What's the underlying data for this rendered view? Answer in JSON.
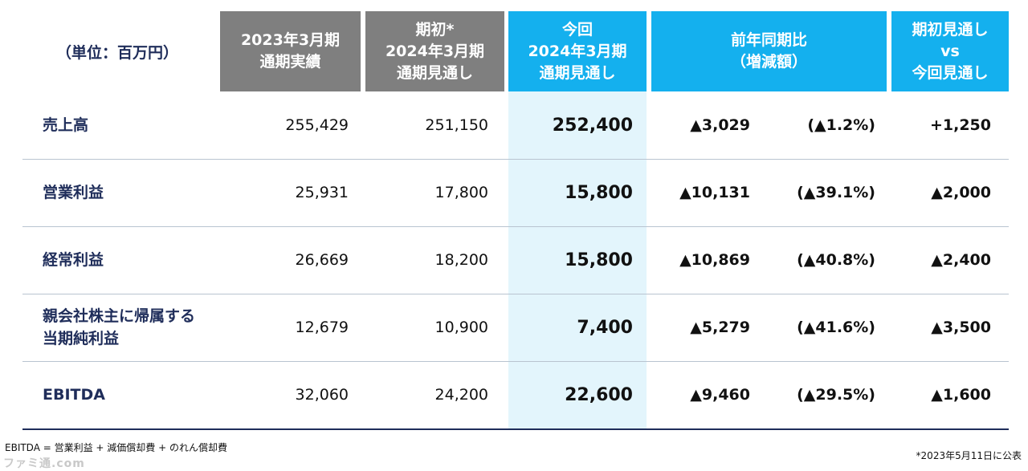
{
  "header": {
    "unit": "（単位：百万円）",
    "columns": [
      {
        "lines": [
          "2023年3月期",
          "通期実績"
        ]
      },
      {
        "lines": [
          "期初*",
          "2024年3月期",
          "通期見通し"
        ]
      },
      {
        "lines": [
          "今回",
          "2024年3月期",
          "通期見通し"
        ]
      },
      {
        "lines": [
          "前年同期比",
          "（増減額）"
        ]
      },
      {
        "lines": [
          "期初見通し",
          "vs",
          "今回見通し"
        ]
      }
    ]
  },
  "rows": [
    {
      "label": [
        "売上高"
      ],
      "actual": "255,429",
      "initial": "251,150",
      "current": "252,400",
      "yoy": "▲3,029",
      "yoy_pct": "(▲1.2%)",
      "diff": "+1,250"
    },
    {
      "label": [
        "営業利益"
      ],
      "actual": "25,931",
      "initial": "17,800",
      "current": "15,800",
      "yoy": "▲10,131",
      "yoy_pct": "(▲39.1%)",
      "diff": "▲2,000"
    },
    {
      "label": [
        "経常利益"
      ],
      "actual": "26,669",
      "initial": "18,200",
      "current": "15,800",
      "yoy": "▲10,869",
      "yoy_pct": "(▲40.8%)",
      "diff": "▲2,400"
    },
    {
      "label": [
        "親会社株主に帰属する",
        "当期純利益"
      ],
      "actual": "12,679",
      "initial": "10,900",
      "current": "7,400",
      "yoy": "▲5,279",
      "yoy_pct": "(▲41.6%)",
      "diff": "▲3,500"
    },
    {
      "label": [
        "EBITDA"
      ],
      "actual": "32,060",
      "initial": "24,200",
      "current": "22,600",
      "yoy": "▲9,460",
      "yoy_pct": "(▲29.5%)",
      "diff": "▲1,600"
    }
  ],
  "footnote": "EBITDA = 営業利益 + 減価償却費 + のれん償却費",
  "announcement": "*2023年5月11日に公表",
  "watermark": "ファミ通.com",
  "colors": {
    "navy": "#1f2d5a",
    "gray_header": "#7f7f7f",
    "blue_header": "#14b0ee",
    "highlight": "#e3f5fc"
  }
}
